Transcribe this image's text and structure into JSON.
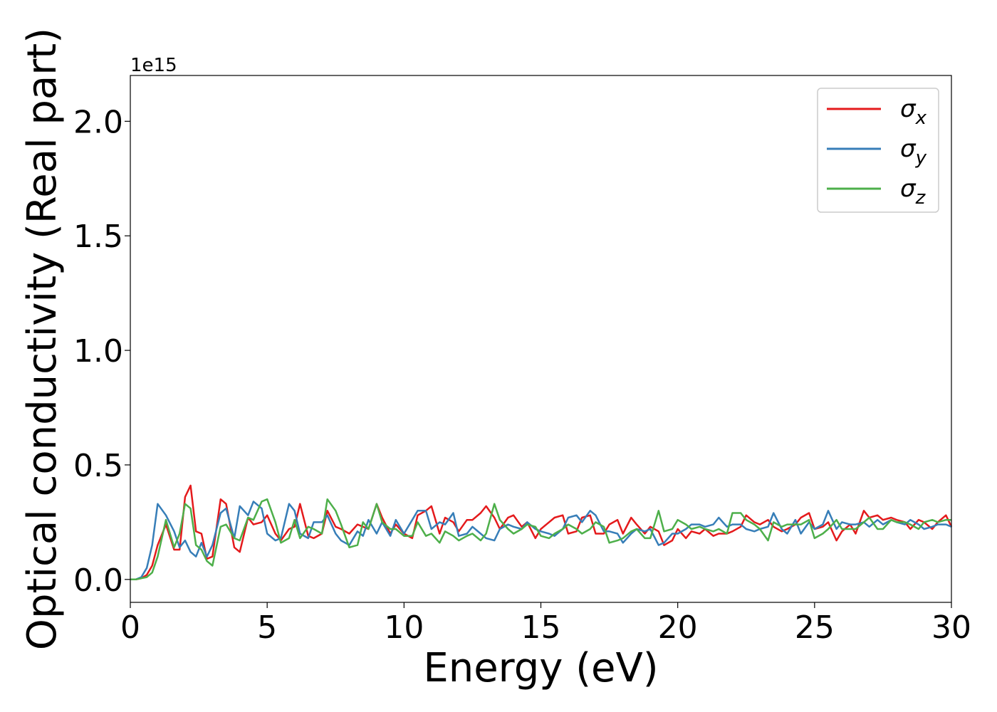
{
  "chart_data": {
    "type": "line",
    "xlabel": "Energy (eV)",
    "ylabel": "Optical conductivity (Real part)",
    "y_offset_text": "1e15",
    "xlim": [
      0,
      30
    ],
    "ylim": [
      -0.1,
      2.2
    ],
    "x_ticks": [
      0,
      5,
      10,
      15,
      20,
      25,
      30
    ],
    "x_tick_labels": [
      "0",
      "5",
      "10",
      "15",
      "20",
      "25",
      "30"
    ],
    "y_ticks": [
      0.0,
      0.5,
      1.0,
      1.5,
      2.0
    ],
    "y_tick_labels": [
      "0.0",
      "0.5",
      "1.0",
      "1.5",
      "2.0"
    ],
    "grid": false,
    "legend_position": "top-right",
    "x": [
      0,
      0.2,
      0.4,
      0.6,
      0.8,
      1.0,
      1.3,
      1.6,
      1.8,
      2.0,
      2.2,
      2.4,
      2.6,
      2.8,
      3.0,
      3.3,
      3.5,
      3.8,
      4.0,
      4.3,
      4.5,
      4.8,
      5.0,
      5.3,
      5.5,
      5.8,
      6.0,
      6.2,
      6.5,
      6.7,
      7.0,
      7.2,
      7.5,
      7.7,
      8.0,
      8.3,
      8.5,
      8.7,
      9.0,
      9.2,
      9.5,
      9.7,
      10.0,
      10.3,
      10.5,
      10.8,
      11.0,
      11.3,
      11.5,
      11.8,
      12.0,
      12.3,
      12.5,
      12.8,
      13.0,
      13.3,
      13.5,
      13.8,
      14.0,
      14.3,
      14.5,
      14.8,
      15.0,
      15.3,
      15.5,
      15.8,
      16.0,
      16.3,
      16.5,
      16.8,
      17.0,
      17.3,
      17.5,
      17.8,
      18.0,
      18.3,
      18.5,
      18.8,
      19.0,
      19.3,
      19.5,
      19.8,
      20.0,
      20.3,
      20.5,
      20.8,
      21.0,
      21.3,
      21.5,
      21.8,
      22.0,
      22.3,
      22.5,
      22.8,
      23.0,
      23.3,
      23.5,
      23.8,
      24.0,
      24.3,
      24.5,
      24.8,
      25.0,
      25.3,
      25.5,
      25.8,
      26.0,
      26.3,
      26.5,
      26.8,
      27.0,
      27.3,
      27.5,
      27.8,
      28.0,
      28.3,
      28.5,
      28.8,
      29.0,
      29.3,
      29.5,
      29.8,
      30.0
    ],
    "series": [
      {
        "name": "σx",
        "legend_base": "σ",
        "legend_sub": "x",
        "color": "#e41a1c",
        "values": [
          0.0,
          0.0,
          0.005,
          0.02,
          0.06,
          0.15,
          0.24,
          0.13,
          0.13,
          0.36,
          0.41,
          0.21,
          0.2,
          0.09,
          0.1,
          0.35,
          0.33,
          0.14,
          0.12,
          0.27,
          0.24,
          0.25,
          0.28,
          0.2,
          0.17,
          0.22,
          0.23,
          0.33,
          0.19,
          0.18,
          0.2,
          0.3,
          0.23,
          0.22,
          0.2,
          0.24,
          0.23,
          0.22,
          0.33,
          0.27,
          0.2,
          0.24,
          0.2,
          0.18,
          0.28,
          0.3,
          0.32,
          0.2,
          0.27,
          0.25,
          0.21,
          0.26,
          0.26,
          0.29,
          0.32,
          0.27,
          0.22,
          0.27,
          0.28,
          0.23,
          0.25,
          0.18,
          0.22,
          0.25,
          0.27,
          0.28,
          0.2,
          0.21,
          0.27,
          0.28,
          0.2,
          0.2,
          0.24,
          0.26,
          0.2,
          0.27,
          0.24,
          0.2,
          0.23,
          0.21,
          0.15,
          0.17,
          0.22,
          0.18,
          0.21,
          0.2,
          0.22,
          0.19,
          0.2,
          0.2,
          0.21,
          0.23,
          0.28,
          0.25,
          0.24,
          0.26,
          0.23,
          0.21,
          0.22,
          0.24,
          0.27,
          0.29,
          0.22,
          0.23,
          0.25,
          0.17,
          0.21,
          0.24,
          0.2,
          0.3,
          0.27,
          0.28,
          0.26,
          0.27,
          0.26,
          0.25,
          0.22,
          0.26,
          0.25,
          0.22,
          0.25,
          0.28,
          0.23
        ]
      },
      {
        "name": "σy",
        "legend_base": "σ",
        "legend_sub": "y",
        "color": "#377eb8",
        "values": [
          0.0,
          0.0,
          0.01,
          0.05,
          0.15,
          0.33,
          0.28,
          0.21,
          0.14,
          0.17,
          0.12,
          0.1,
          0.16,
          0.1,
          0.15,
          0.29,
          0.31,
          0.18,
          0.32,
          0.28,
          0.34,
          0.31,
          0.2,
          0.17,
          0.18,
          0.33,
          0.3,
          0.2,
          0.18,
          0.25,
          0.25,
          0.28,
          0.2,
          0.17,
          0.15,
          0.21,
          0.19,
          0.26,
          0.2,
          0.25,
          0.19,
          0.26,
          0.2,
          0.26,
          0.3,
          0.3,
          0.22,
          0.25,
          0.24,
          0.29,
          0.19,
          0.2,
          0.23,
          0.2,
          0.18,
          0.17,
          0.22,
          0.24,
          0.23,
          0.22,
          0.25,
          0.22,
          0.21,
          0.2,
          0.19,
          0.22,
          0.27,
          0.28,
          0.25,
          0.3,
          0.28,
          0.21,
          0.21,
          0.2,
          0.16,
          0.2,
          0.22,
          0.21,
          0.22,
          0.15,
          0.16,
          0.2,
          0.2,
          0.22,
          0.24,
          0.24,
          0.23,
          0.24,
          0.27,
          0.23,
          0.24,
          0.24,
          0.22,
          0.21,
          0.22,
          0.23,
          0.29,
          0.22,
          0.2,
          0.26,
          0.2,
          0.25,
          0.22,
          0.24,
          0.3,
          0.22,
          0.25,
          0.24,
          0.24,
          0.25,
          0.23,
          0.26,
          0.24,
          0.26,
          0.25,
          0.24,
          0.26,
          0.24,
          0.22,
          0.23,
          0.24,
          0.24,
          0.23
        ]
      },
      {
        "name": "σz",
        "legend_base": "σ",
        "legend_sub": "z",
        "color": "#4daf4a",
        "values": [
          0.0,
          0.0,
          0.005,
          0.01,
          0.03,
          0.1,
          0.26,
          0.14,
          0.2,
          0.33,
          0.31,
          0.15,
          0.13,
          0.08,
          0.06,
          0.23,
          0.24,
          0.18,
          0.17,
          0.27,
          0.26,
          0.34,
          0.35,
          0.25,
          0.16,
          0.18,
          0.26,
          0.18,
          0.23,
          0.22,
          0.2,
          0.35,
          0.3,
          0.24,
          0.14,
          0.15,
          0.25,
          0.22,
          0.33,
          0.25,
          0.22,
          0.22,
          0.19,
          0.19,
          0.25,
          0.19,
          0.2,
          0.16,
          0.21,
          0.19,
          0.17,
          0.19,
          0.2,
          0.17,
          0.2,
          0.33,
          0.26,
          0.22,
          0.2,
          0.22,
          0.24,
          0.23,
          0.19,
          0.18,
          0.2,
          0.22,
          0.24,
          0.22,
          0.2,
          0.22,
          0.25,
          0.23,
          0.16,
          0.17,
          0.18,
          0.21,
          0.22,
          0.18,
          0.18,
          0.3,
          0.21,
          0.22,
          0.26,
          0.24,
          0.22,
          0.23,
          0.22,
          0.21,
          0.22,
          0.2,
          0.29,
          0.29,
          0.26,
          0.24,
          0.22,
          0.17,
          0.25,
          0.23,
          0.24,
          0.24,
          0.24,
          0.26,
          0.18,
          0.2,
          0.22,
          0.26,
          0.22,
          0.22,
          0.22,
          0.25,
          0.27,
          0.22,
          0.22,
          0.26,
          0.25,
          0.25,
          0.24,
          0.22,
          0.25,
          0.26,
          0.25,
          0.26,
          0.26
        ]
      }
    ]
  }
}
